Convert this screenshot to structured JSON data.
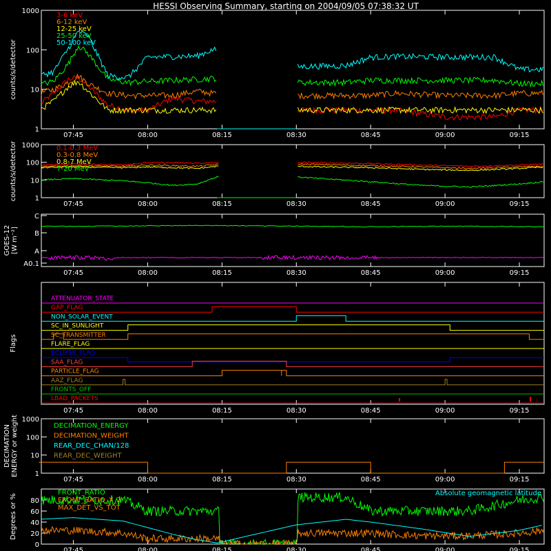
{
  "title": "HESSI Observing Summary, starting on 2004/09/05 07:38:32 UT",
  "time_axis": {
    "start": "07:38:32",
    "end": "09:20:00",
    "ticks": [
      "07:45",
      "08:00",
      "08:15",
      "08:30",
      "08:45",
      "09:00",
      "09:15"
    ]
  },
  "panels": [
    {
      "id": "lo-energy",
      "ylabel": "counts/s/detector",
      "scale": "log",
      "ylim": [
        1,
        1000
      ],
      "ytick_labels": [
        "1",
        "10",
        "100",
        "1000"
      ],
      "legend": [
        {
          "label": "3-6 keV",
          "color": "#ff0000"
        },
        {
          "label": "6-12 keV",
          "color": "#ff8000"
        },
        {
          "label": "12-25 keV",
          "color": "#ffff00"
        },
        {
          "label": "25-50 keV",
          "color": "#00ff00"
        },
        {
          "label": "50-100 keV",
          "color": "#00ffff"
        }
      ]
    },
    {
      "id": "hi-energy",
      "ylabel": "counts/s/detector",
      "scale": "log",
      "ylim": [
        1,
        1000
      ],
      "ytick_labels": [
        "1",
        "10",
        "100",
        "1000"
      ],
      "legend": [
        {
          "label": "0.1-0.3 MeV",
          "color": "#ff0000"
        },
        {
          "label": "0.3-0.8 MeV",
          "color": "#ff8000"
        },
        {
          "label": "0.8-7 MeV",
          "color": "#ffff00"
        },
        {
          "label": "7-20 MeV",
          "color": "#00ff00"
        }
      ]
    },
    {
      "id": "goes",
      "ylabel": "GOES-12",
      "ylabel2": "[W m⁻²]",
      "ytick_labels": [
        "A0.1",
        "A",
        "B",
        "C"
      ]
    },
    {
      "id": "flags",
      "ylabel": "Flags",
      "flags": [
        {
          "label": "ATTENUATOR_STATE",
          "color": "#ff00ff"
        },
        {
          "label": "GAP_FLAG",
          "color": "#ff0000"
        },
        {
          "label": "NON_SOLAR_EVENT",
          "color": "#00ffff"
        },
        {
          "label": "SC_IN_SUNLIGHT",
          "color": "#ffff00"
        },
        {
          "label": "SC_TRANSMITTER",
          "color": "#ff8000"
        },
        {
          "label": "FLARE_FLAG",
          "color": "#ffff00"
        },
        {
          "label": "ECLIPSE_FLAG",
          "color": "#0000ff"
        },
        {
          "label": "SAA_FLAG",
          "color": "#ff4040"
        },
        {
          "label": "PARTICLE_FLAG",
          "color": "#ff8000"
        },
        {
          "label": "AAZ_FLAG",
          "color": "#a08020"
        },
        {
          "label": "FRONTS_OFF",
          "color": "#00c000"
        },
        {
          "label": "LBAD_PACKETS",
          "color": "#ff0000"
        }
      ]
    },
    {
      "id": "decimation",
      "ylabel": "DECIMATION",
      "ylabel2": "ENERGY or weight",
      "scale": "log",
      "ylim": [
        1,
        1000
      ],
      "ytick_labels": [
        "1",
        "10",
        "100",
        "1000"
      ],
      "legend": [
        {
          "label": "DECIMATION_ENERGY",
          "color": "#00ff00"
        },
        {
          "label": "DECIMATION_WEIGHT",
          "color": "#ff8000"
        },
        {
          "label": "REAR_DEC_CHAN/128",
          "color": "#00ffff"
        },
        {
          "label": "REAR_DEC_WEIGHT",
          "color": "#a08020"
        }
      ]
    },
    {
      "id": "ratios",
      "ylabel": "Degrees or %",
      "ylim": [
        0,
        100
      ],
      "ytick_labels": [
        "0",
        "20",
        "40",
        "60",
        "80"
      ],
      "legend": [
        {
          "label": "FRONT_RATIO",
          "color": "#00ff00"
        },
        {
          "label": "FRONT_RATIO_X_2",
          "color": "#ff8000"
        },
        {
          "label": "MAX_DET_VS_TOT",
          "color": "#ff8000"
        }
      ],
      "right_legend": {
        "label": "Absolute geomagnetic latitude",
        "color": "#00ffff"
      }
    }
  ],
  "chart_data": [
    {
      "type": "line",
      "title": "HESSI Observing Summary, starting on 2004/09/05 07:38:32 UT",
      "ylabel": "counts/s/detector",
      "scale": "log",
      "ylim": [
        1,
        1000
      ],
      "x": [
        "07:38",
        "07:41",
        "07:44",
        "07:46",
        "07:48",
        "07:52",
        "07:56",
        "08:00",
        "08:05",
        "08:10",
        "08:13",
        "08:14",
        "08:30",
        "08:31",
        "08:40",
        "08:45",
        "08:50",
        "09:00",
        "09:10",
        "09:15",
        "09:20"
      ],
      "series": [
        {
          "name": "3-6 keV",
          "values": [
            4,
            8,
            18,
            20,
            12,
            4,
            3,
            3,
            6,
            5,
            5,
            null,
            null,
            3,
            3,
            3,
            3,
            2,
            2,
            3,
            3
          ]
        },
        {
          "name": "6-12 keV",
          "values": [
            8,
            10,
            15,
            22,
            14,
            8,
            7,
            7,
            7,
            9,
            8,
            null,
            null,
            7,
            7,
            7,
            8,
            7,
            7,
            8,
            8
          ]
        },
        {
          "name": "12-25 keV",
          "values": [
            3,
            5,
            12,
            16,
            9,
            3,
            3,
            3,
            3,
            3,
            3,
            null,
            null,
            3,
            3,
            3,
            3,
            3,
            3,
            3,
            3
          ]
        },
        {
          "name": "25-50 keV",
          "values": [
            13,
            16,
            45,
            130,
            80,
            18,
            15,
            16,
            17,
            18,
            19,
            null,
            null,
            15,
            15,
            17,
            17,
            17,
            17,
            14,
            14
          ]
        },
        {
          "name": "50-100 keV",
          "values": [
            22,
            28,
            110,
            300,
            220,
            22,
            20,
            65,
            68,
            70,
            100,
            null,
            null,
            38,
            40,
            65,
            68,
            66,
            66,
            32,
            32
          ]
        }
      ]
    },
    {
      "type": "line",
      "ylabel": "counts/s/detector",
      "scale": "log",
      "ylim": [
        1,
        1000
      ],
      "x": [
        "07:38",
        "07:45",
        "07:55",
        "08:00",
        "08:05",
        "08:10",
        "08:14",
        "08:30",
        "08:35",
        "08:45",
        "08:55",
        "09:05",
        "09:15",
        "09:20"
      ],
      "series": [
        {
          "name": "0.1-0.3 MeV",
          "values": [
            70,
            80,
            75,
            95,
            95,
            90,
            95,
            100,
            95,
            85,
            70,
            60,
            70,
            80
          ]
        },
        {
          "name": "0.3-0.8 MeV",
          "values": [
            55,
            65,
            60,
            70,
            65,
            60,
            75,
            80,
            75,
            65,
            55,
            45,
            55,
            60
          ]
        },
        {
          "name": "0.8-7 MeV",
          "values": [
            50,
            55,
            50,
            55,
            50,
            45,
            60,
            60,
            55,
            50,
            40,
            35,
            45,
            55
          ]
        },
        {
          "name": "7-20 MeV",
          "values": [
            10,
            12,
            9,
            7,
            5,
            6,
            15,
            15,
            12,
            8,
            5,
            4,
            6,
            8
          ]
        }
      ]
    },
    {
      "type": "line",
      "ylabel": "GOES-12",
      "series": [
        {
          "name": "GOES long",
          "color": "#00ff00",
          "level": "B-C"
        },
        {
          "name": "GOES short",
          "color": "#ff00ff",
          "level": "A0.1-A"
        }
      ]
    },
    {
      "type": "line",
      "ylabel": "Degrees or %",
      "ylim": [
        0,
        100
      ],
      "series": [
        {
          "name": "FRONT_RATIO",
          "values": [
            80,
            80,
            80,
            60,
            60,
            60,
            60,
            85,
            85,
            60,
            60,
            60,
            80,
            85
          ]
        },
        {
          "name": "MAX_DET_VS_TOT",
          "values": [
            25,
            25,
            20,
            10,
            10,
            10,
            10,
            20,
            20,
            20,
            15,
            15,
            20,
            25
          ]
        },
        {
          "name": "Absolute geomagnetic latitude",
          "values": [
            45,
            48,
            42,
            30,
            18,
            8,
            2,
            35,
            45,
            40,
            28,
            14,
            25,
            35
          ]
        }
      ],
      "x": [
        "07:38",
        "07:45",
        "07:55",
        "08:00",
        "08:05",
        "08:10",
        "08:14",
        "08:30",
        "08:40",
        "08:45",
        "08:55",
        "09:05",
        "09:15",
        "09:20"
      ]
    }
  ]
}
